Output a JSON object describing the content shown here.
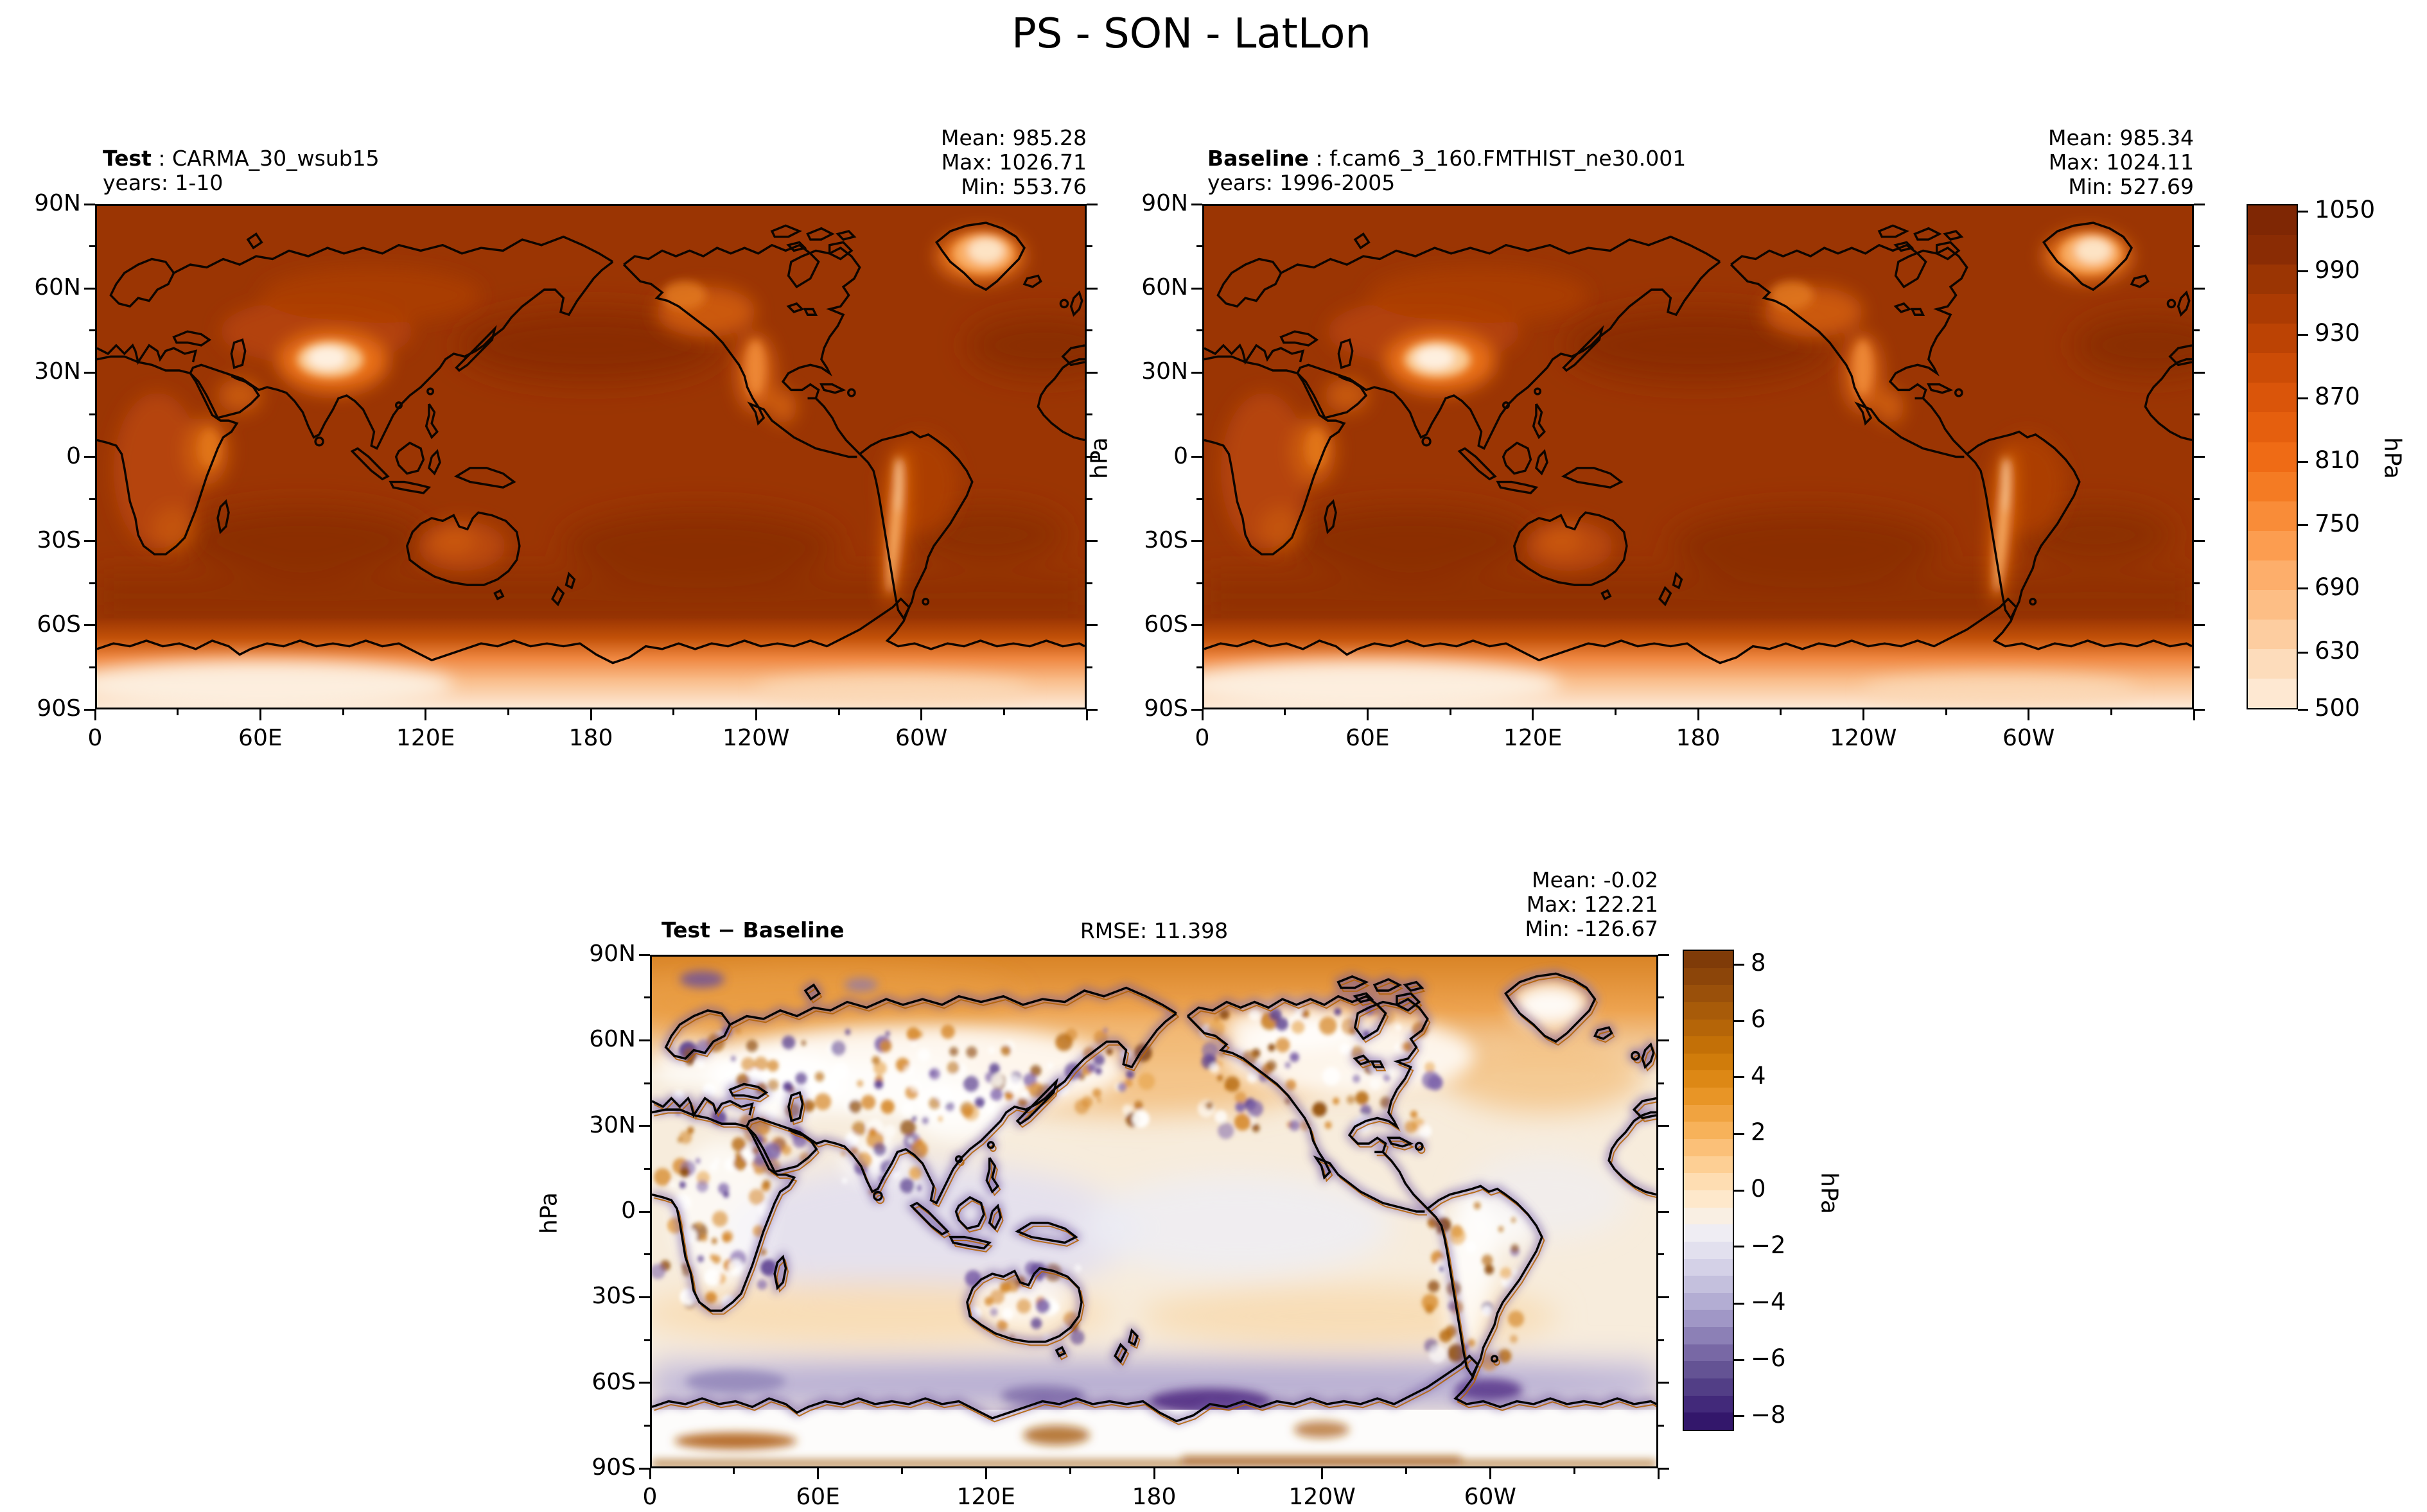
{
  "title": "PS - SON - LatLon",
  "axes": {
    "lat_ticks": [
      "90N",
      "60N",
      "30N",
      "0",
      "30S",
      "60S",
      "90S"
    ],
    "lon_ticks": [
      "0",
      "60E",
      "120E",
      "180",
      "120W",
      "60W"
    ],
    "unit": "hPa"
  },
  "chart_data": [
    {
      "type": "heatmap",
      "id": "test",
      "label": "Test",
      "label_sep": " : ",
      "case": "CARMA_30_wsub15",
      "years": "years: 1-10",
      "stats": {
        "mean": 985.28,
        "max": 1026.71,
        "min": 553.76
      },
      "stats_labels": {
        "mean": "Mean: 985.28",
        "max": "Max: 1026.71",
        "min": "Min: 553.76"
      },
      "variable": "PS",
      "season": "SON",
      "projection": "LatLon",
      "colormap": "Oranges",
      "ylabel": "",
      "x_ticks": [
        "0",
        "60E",
        "120E",
        "180",
        "120W",
        "60W"
      ],
      "y_ticks": [
        "90N",
        "60N",
        "30N",
        "0",
        "30S",
        "60S",
        "90S"
      ],
      "extent": {
        "lon": [
          0,
          360
        ],
        "lat": [
          -90,
          90
        ]
      }
    },
    {
      "type": "heatmap",
      "id": "baseline",
      "label": "Baseline",
      "label_sep": " : ",
      "case": "f.cam6_3_160.FMTHIST_ne30.001",
      "years": "years: 1996-2005",
      "stats": {
        "mean": 985.34,
        "max": 1024.11,
        "min": 527.69
      },
      "stats_labels": {
        "mean": "Mean: 985.34",
        "max": "Max: 1024.11",
        "min": "Min: 527.69"
      },
      "variable": "PS",
      "season": "SON",
      "projection": "LatLon",
      "colormap": "Oranges",
      "ylabel": "hPa",
      "x_ticks": [
        "0",
        "60E",
        "120E",
        "180",
        "120W",
        "60W"
      ],
      "y_ticks": [
        "90N",
        "60N",
        "30N",
        "0",
        "30S",
        "60S",
        "90S"
      ],
      "extent": {
        "lon": [
          0,
          360
        ],
        "lat": [
          -90,
          90
        ]
      }
    },
    {
      "type": "heatmap",
      "id": "difference",
      "label": "Test − Baseline",
      "rmse": "RMSE: 11.398",
      "stats": {
        "mean": -0.02,
        "max": 122.21,
        "min": -126.67
      },
      "stats_labels": {
        "mean": "Mean: -0.02",
        "max": "Max: 122.21",
        "min": "Min: -126.67"
      },
      "variable": "PS",
      "season": "SON",
      "projection": "LatLon",
      "colormap": "PuOr",
      "ylabel": "hPa",
      "x_ticks": [
        "0",
        "60E",
        "120E",
        "180",
        "120W",
        "60W"
      ],
      "y_ticks": [
        "90N",
        "60N",
        "30N",
        "0",
        "30S",
        "60S",
        "90S"
      ],
      "extent": {
        "lon": [
          0,
          360
        ],
        "lat": [
          -90,
          90
        ]
      }
    }
  ],
  "colorbars": [
    {
      "id": "pressure",
      "unit": "hPa",
      "tick_labels": [
        "1050",
        "990",
        "930",
        "870",
        "810",
        "750",
        "690",
        "630",
        "500"
      ],
      "range": [
        500,
        1050
      ]
    },
    {
      "id": "difference",
      "unit": "hPa",
      "tick_labels": [
        "8",
        "6",
        "4",
        "2",
        "0",
        "−2",
        "−4",
        "−6",
        "−8"
      ],
      "range": [
        -9,
        9
      ]
    }
  ]
}
